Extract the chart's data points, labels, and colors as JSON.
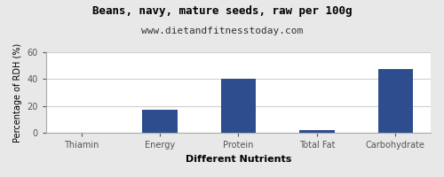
{
  "title": "Beans, navy, mature seeds, raw per 100g",
  "subtitle": "www.dietandfitnesstoday.com",
  "xlabel": "Different Nutrients",
  "ylabel": "Percentage of RDH (%)",
  "categories": [
    "Thiamin",
    "Energy",
    "Protein",
    "Total Fat",
    "Carbohydrate"
  ],
  "values": [
    0.4,
    17.5,
    40.0,
    2.5,
    47.5
  ],
  "bar_color": "#2e4d8e",
  "ylim": [
    0,
    60
  ],
  "yticks": [
    0,
    20,
    40,
    60
  ],
  "background_color": "#e8e8e8",
  "plot_background": "#ffffff",
  "title_fontsize": 9,
  "subtitle_fontsize": 8,
  "xlabel_fontsize": 8,
  "ylabel_fontsize": 7,
  "tick_fontsize": 7,
  "grid_color": "#d0d0d0"
}
